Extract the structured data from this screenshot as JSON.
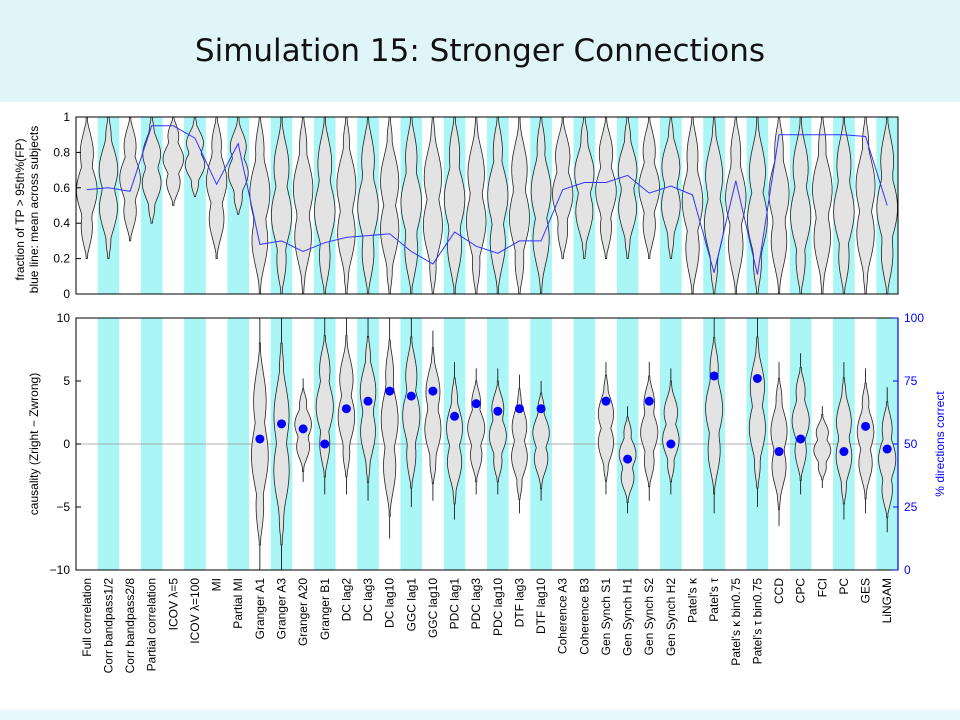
{
  "title": "Simulation 15: Stronger Connections",
  "chart_data": [
    {
      "type": "violin",
      "panel": "top",
      "ylabel": "fraction of TP > 95th%(FP)",
      "ylabel2": "blue line: mean across subjects",
      "ylim": [
        0,
        1
      ],
      "yticks": [
        0,
        0.2,
        0.4,
        0.6,
        0.8,
        1
      ],
      "line_color": "#3333ff",
      "band_color": "#aaf5f5",
      "categories": [
        "Full correlation",
        "Corr bandpass1/2",
        "Corr bandpass2/8",
        "Partial correlation",
        "ICOV λ=5",
        "ICOV λ=100",
        "MI",
        "Partial MI",
        "Granger A1",
        "Granger A3",
        "Granger A20",
        "Granger B1",
        "DC lag2",
        "DC lag3",
        "DC lag10",
        "GGC lag1",
        "GGC lag10",
        "PDC lag1",
        "PDC lag3",
        "PDC lag10",
        "DTF lag3",
        "DTF lag10",
        "Coherence A3",
        "Coherence B3",
        "Gen Synch S1",
        "Gen Synch H1",
        "Gen Synch S2",
        "Gen Synch H2",
        "Patel's κ",
        "Patel's τ",
        "Patel's κ bin0.75",
        "Patel's τ bin0.75",
        "CCD",
        "CPC",
        "FCI",
        "PC",
        "GES",
        "LiNGAM"
      ],
      "mean_line": [
        0.59,
        0.6,
        0.58,
        0.95,
        0.95,
        0.88,
        0.62,
        0.85,
        0.28,
        0.3,
        0.24,
        0.29,
        0.32,
        0.33,
        0.34,
        0.24,
        0.17,
        0.35,
        0.27,
        0.23,
        0.3,
        0.3,
        0.59,
        0.63,
        0.63,
        0.67,
        0.57,
        0.61,
        0.56,
        0.12,
        0.64,
        0.11,
        0.9,
        0.9,
        0.9,
        0.9,
        0.89,
        0.5
      ],
      "violin_range": [
        [
          0.2,
          1
        ],
        [
          0.2,
          1
        ],
        [
          0.3,
          1
        ],
        [
          0.4,
          1
        ],
        [
          0.5,
          1
        ],
        [
          0.55,
          1
        ],
        [
          0.2,
          1
        ],
        [
          0.45,
          1
        ],
        [
          0,
          1
        ],
        [
          0,
          1
        ],
        [
          0,
          1
        ],
        [
          0,
          1
        ],
        [
          0,
          1
        ],
        [
          0,
          1
        ],
        [
          0,
          1
        ],
        [
          0,
          1
        ],
        [
          0,
          1
        ],
        [
          0,
          1
        ],
        [
          0,
          1
        ],
        [
          0,
          1
        ],
        [
          0,
          1
        ],
        [
          0,
          1
        ],
        [
          0.2,
          1
        ],
        [
          0.2,
          1
        ],
        [
          0.2,
          1
        ],
        [
          0.2,
          1
        ],
        [
          0.2,
          1
        ],
        [
          0.2,
          1
        ],
        [
          0,
          1
        ],
        [
          0,
          1
        ],
        [
          0,
          1
        ],
        [
          0,
          1
        ],
        [
          0,
          1
        ],
        [
          0,
          1
        ],
        [
          0,
          1
        ],
        [
          0,
          1
        ],
        [
          0,
          1
        ],
        [
          0,
          1
        ]
      ]
    },
    {
      "type": "violin",
      "panel": "bottom",
      "ylabel": "causality  (Zright − Zwrong)",
      "ylabel_right": "% directions correct",
      "ylim": [
        -10,
        10
      ],
      "yticks": [
        -10,
        -5,
        0,
        5,
        10
      ],
      "ylim_right": [
        0,
        100
      ],
      "yticks_right": [
        0,
        25,
        50,
        75,
        100
      ],
      "dot_color": "#0000ff",
      "violin_range": [
        null,
        null,
        null,
        null,
        null,
        null,
        null,
        null,
        [
          -10,
          10
        ],
        [
          -10,
          10
        ],
        [
          -3,
          5.2
        ],
        [
          -4,
          10
        ],
        [
          -4,
          10
        ],
        [
          -4.5,
          10
        ],
        [
          -7.5,
          10
        ],
        [
          -5,
          10
        ],
        [
          -4.5,
          9
        ],
        [
          -6,
          6.5
        ],
        [
          -4,
          6
        ],
        [
          -4,
          6
        ],
        [
          -5.5,
          5.5
        ],
        [
          -4.5,
          5
        ],
        null,
        null,
        [
          -4,
          6.5
        ],
        [
          -5.5,
          3
        ],
        [
          -4.5,
          6.5
        ],
        [
          -4,
          6
        ],
        null,
        [
          -5.5,
          10
        ],
        null,
        [
          -5,
          10
        ],
        [
          -6.5,
          6.5
        ],
        [
          -4,
          7.2
        ],
        [
          -3.5,
          3
        ],
        [
          -6,
          6.5
        ],
        [
          -5.5,
          6
        ],
        [
          -7,
          4.5
        ]
      ],
      "percent_correct": [
        null,
        null,
        null,
        null,
        null,
        null,
        null,
        null,
        52,
        58,
        56,
        50,
        64,
        67,
        71,
        69,
        71,
        61,
        66,
        63,
        64,
        64,
        null,
        null,
        67,
        44,
        67,
        50,
        null,
        77,
        null,
        76,
        47,
        52,
        null,
        47,
        57,
        48
      ]
    }
  ]
}
